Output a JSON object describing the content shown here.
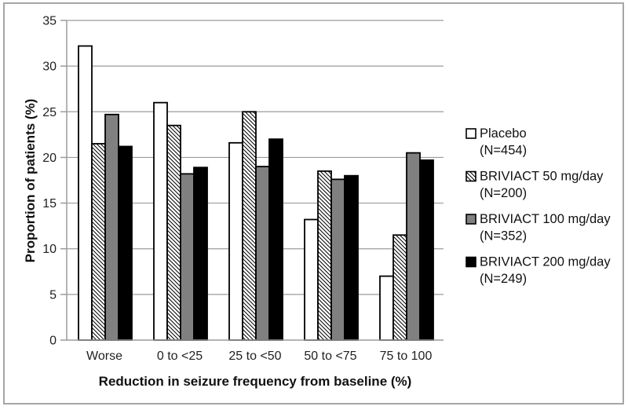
{
  "chart_data": {
    "type": "bar",
    "title": "",
    "xlabel": "Reduction in seizure frequency from baseline (%)",
    "ylabel": "Proportion of patients (%)",
    "ylim": [
      0,
      35
    ],
    "y_ticks": [
      0,
      5,
      10,
      15,
      20,
      25,
      30,
      35
    ],
    "grid": true,
    "legend_position": "right",
    "categories": [
      "Worse",
      "0 to <25",
      "25 to <50",
      "50 to <75",
      "75 to 100"
    ],
    "series": [
      {
        "name": "Placebo",
        "n_label": "(N=454)",
        "style": "white",
        "values": [
          32.2,
          26.0,
          21.6,
          13.2,
          7.0
        ]
      },
      {
        "name": "BRIVIACT 50 mg/day",
        "n_label": "(N=200)",
        "style": "hatch",
        "values": [
          21.5,
          23.5,
          25.0,
          18.5,
          11.5
        ]
      },
      {
        "name": "BRIVIACT 100 mg/day",
        "n_label": "(N=352)",
        "style": "gray",
        "values": [
          24.7,
          18.2,
          19.0,
          17.6,
          20.5
        ]
      },
      {
        "name": "BRIVIACT 200 mg/day",
        "n_label": "(N=249)",
        "style": "black",
        "values": [
          21.2,
          18.9,
          22.0,
          18.0,
          19.7
        ]
      }
    ],
    "colors": {
      "bar_white": "#ffffff",
      "bar_gray": "#808080",
      "bar_black": "#000000",
      "bar_border": "#000000",
      "gridline": "#9c9c9c",
      "axis": "#9c9c9c",
      "figure_border": "#a6a6a6",
      "text": "#1f1f1f"
    }
  }
}
